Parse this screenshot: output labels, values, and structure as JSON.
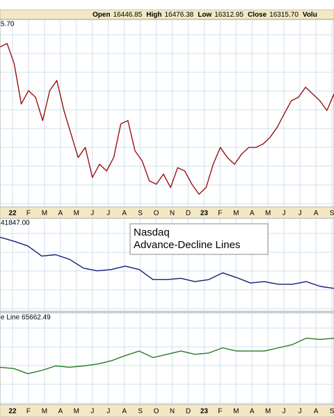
{
  "header": [
    {
      "label": "Open",
      "value": "16446.85"
    },
    {
      "label": "High",
      "value": "16476.38"
    },
    {
      "label": "Low",
      "value": "16312.95"
    },
    {
      "label": "Close",
      "value": "16315.70"
    },
    {
      "label": "Volu"
    }
  ],
  "x_axis_labels": [
    "22",
    "F",
    "M",
    "A",
    "M",
    "J",
    "J",
    "A",
    "S",
    "O",
    "N",
    "D",
    "23",
    "F",
    "M",
    "A",
    "M",
    "J",
    "J",
    "A",
    "S"
  ],
  "annotation": [
    "Nasdaq",
    "Advance-Decline Lines"
  ],
  "chart_data": [
    {
      "type": "line",
      "label": "5.70",
      "color": "#9a1010",
      "ylim": [
        10000,
        16500
      ],
      "values": [
        15620,
        15740,
        15020,
        13580,
        14060,
        13820,
        12990,
        14060,
        14420,
        13350,
        12510,
        11670,
        12030,
        10960,
        11430,
        11190,
        11670,
        12870,
        12990,
        11910,
        11550,
        10840,
        10720,
        11080,
        10600,
        11310,
        11190,
        10720,
        10360,
        10600,
        11430,
        12030,
        11670,
        11430,
        11790,
        12030,
        12030,
        12150,
        12390,
        12750,
        13230,
        13700,
        13820,
        14180,
        13940,
        13700,
        13350,
        13940
      ]
    },
    {
      "type": "line",
      "label": "41847.00",
      "color": "#1a1a78",
      "ylim": [
        19000,
        45000
      ],
      "values": [
        40200,
        39000,
        37600,
        34600,
        35000,
        33600,
        31000,
        30200,
        30600,
        31600,
        30600,
        27600,
        27600,
        28000,
        27000,
        27600,
        29600,
        28200,
        26600,
        27000,
        26200,
        26200,
        27000,
        25600,
        25000
      ]
    },
    {
      "type": "line",
      "label": "e Line 65662.49",
      "color": "#237a23",
      "ylim": [
        40000,
        80000
      ],
      "values": [
        56000,
        55400,
        53000,
        54500,
        56600,
        56000,
        56600,
        57500,
        59000,
        61400,
        63500,
        60500,
        62000,
        63500,
        62000,
        62600,
        65000,
        63500,
        63500,
        63500,
        65000,
        66500,
        69500,
        68900,
        69500
      ]
    }
  ]
}
